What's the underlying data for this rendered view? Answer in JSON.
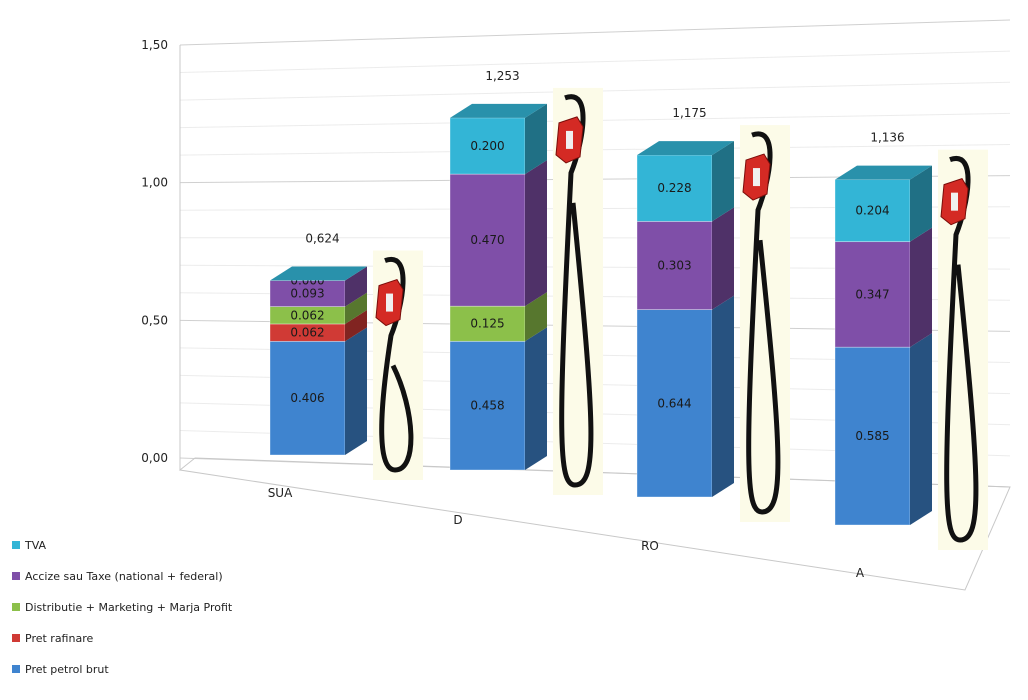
{
  "chart_data": {
    "type": "bar3d_stacked",
    "categories": [
      "SUA",
      "D",
      "RO",
      "A"
    ],
    "ylim": [
      0,
      1.5
    ],
    "yticks": [
      {
        "value": 0,
        "label": "0,00"
      },
      {
        "value": 0.5,
        "label": "0,50"
      },
      {
        "value": 1,
        "label": "1,00"
      },
      {
        "value": 1.5,
        "label": "1,50"
      }
    ],
    "grid": true,
    "legend": "bottom-left",
    "series": [
      {
        "name": "Pret petrol brut",
        "color": "#3f84cf",
        "values": [
          0.406,
          0.458,
          0.644,
          0.585
        ],
        "value_labels": [
          "0.406",
          "0.458",
          "0.644",
          "0.585"
        ]
      },
      {
        "name": "Pret rafinare",
        "color": "#d03a35",
        "values": [
          0.062,
          null,
          null,
          null
        ],
        "value_labels": [
          "0.062",
          null,
          null,
          null
        ]
      },
      {
        "name": "Distributie + Marketing + Marja Profit",
        "color": "#8cc04a",
        "values": [
          0.062,
          0.125,
          null,
          null
        ],
        "value_labels": [
          "0.062",
          "0.125",
          null,
          null
        ]
      },
      {
        "name": "Accize sau Taxe (national + federal)",
        "color": "#7f4fa8",
        "values": [
          0.093,
          0.47,
          0.303,
          0.347
        ],
        "value_labels": [
          "0.093",
          "0.470",
          "0.303",
          "0.347"
        ]
      },
      {
        "name": "TVA",
        "color": "#33b5d6",
        "values": [
          0,
          0.2,
          0.228,
          0.204
        ],
        "value_labels": [
          "0.000",
          "0.200",
          "0.228",
          "0.204"
        ]
      }
    ],
    "totals": {
      "values": [
        0.624,
        1.253,
        1.175,
        1.136
      ],
      "value_labels": [
        "0,624",
        "1,253",
        "1,175",
        "1,136"
      ]
    }
  }
}
